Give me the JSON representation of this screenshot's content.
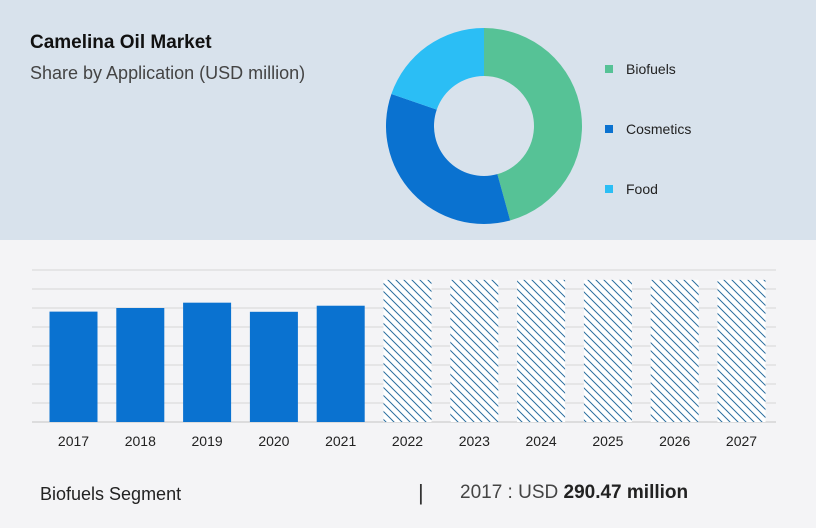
{
  "header": {
    "title": "Camelina Oil Market",
    "subtitle": "Share by Application (USD million)"
  },
  "colors": {
    "biofuels": "#56c296",
    "cosmetics": "#0a72d0",
    "food": "#2bbef5",
    "bar": "#0a72d0",
    "forecast_hatch": "#2c6fa0"
  },
  "chart_data": [
    {
      "type": "pie",
      "style": "donut",
      "categories": [
        "Biofuels",
        "Cosmetics",
        "Food"
      ],
      "values": [
        45.7,
        34.6,
        19.7
      ],
      "legend": "right"
    },
    {
      "type": "bar",
      "categories": [
        "2017",
        "2018",
        "2019",
        "2020",
        "2021",
        "2022",
        "2023",
        "2024",
        "2025",
        "2026",
        "2027"
      ],
      "values": [
        290.47,
        300.0,
        314.0,
        290.0,
        306.0,
        374.0,
        374.0,
        374.0,
        374.0,
        374.0,
        374.0
      ],
      "forecast_from": "2022",
      "ylim": [
        0,
        400
      ],
      "grid": true
    }
  ],
  "footer": {
    "segment": "Biofuels Segment",
    "separator": "|",
    "year_label": "2017 : USD",
    "value": "290.47 million"
  }
}
